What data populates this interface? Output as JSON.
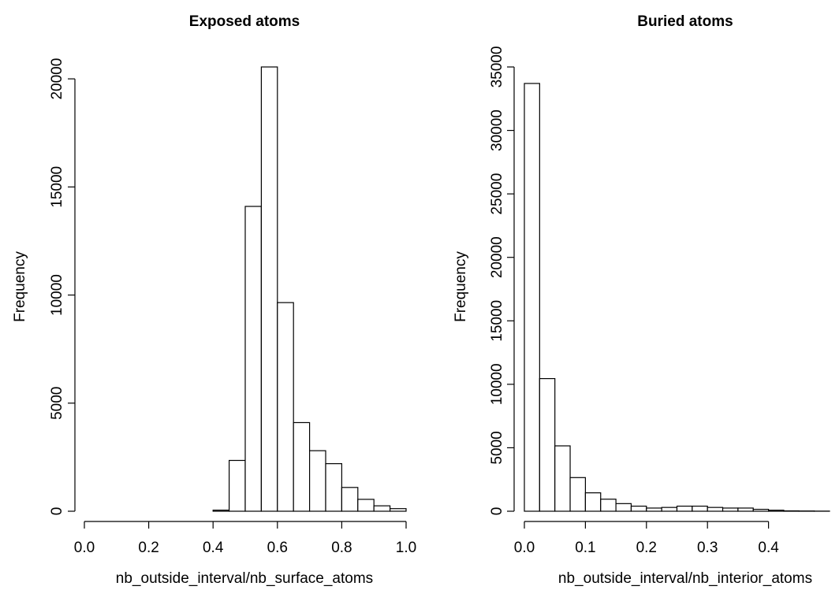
{
  "chart_data": [
    {
      "type": "bar",
      "title": "Exposed atoms",
      "xlabel": "nb_outside_interval/nb_surface_atoms",
      "ylabel": "Frequency",
      "bin_edges": [
        0.0,
        0.05,
        0.1,
        0.15,
        0.2,
        0.25,
        0.3,
        0.35,
        0.4,
        0.45,
        0.5,
        0.55,
        0.6,
        0.65,
        0.7,
        0.75,
        0.8,
        0.85,
        0.9,
        0.95,
        1.0
      ],
      "values": [
        0,
        0,
        0,
        0,
        0,
        0,
        0,
        0,
        50,
        2350,
        14100,
        20550,
        9650,
        4100,
        2800,
        2200,
        1100,
        550,
        250,
        120
      ],
      "xlim": [
        0.0,
        1.0
      ],
      "ylim": [
        0,
        20550
      ],
      "xticks": [
        0.0,
        0.2,
        0.4,
        0.6,
        0.8,
        1.0
      ],
      "xtick_labels": [
        "0.0",
        "0.2",
        "0.4",
        "0.6",
        "0.8",
        "1.0"
      ],
      "yticks": [
        0,
        5000,
        10000,
        15000,
        20000
      ],
      "ytick_labels": [
        "0",
        "5000",
        "10000",
        "15000",
        "20000"
      ],
      "grid": false
    },
    {
      "type": "bar",
      "title": "Buried atoms",
      "xlabel": "nb_outside_interval/nb_interior_atoms",
      "ylabel": "Frequency",
      "bin_edges": [
        0.0,
        0.025,
        0.05,
        0.075,
        0.1,
        0.125,
        0.15,
        0.175,
        0.2,
        0.225,
        0.25,
        0.275,
        0.3,
        0.325,
        0.35,
        0.375,
        0.4,
        0.425,
        0.45,
        0.475,
        0.5
      ],
      "values": [
        33700,
        10450,
        5150,
        2650,
        1450,
        950,
        600,
        400,
        250,
        300,
        400,
        400,
        300,
        250,
        250,
        150,
        80,
        30,
        20,
        10
      ],
      "xlim": [
        0.0,
        0.5
      ],
      "ylim": [
        0,
        35000
      ],
      "xticks": [
        0.0,
        0.1,
        0.2,
        0.3,
        0.4
      ],
      "xtick_labels": [
        "0.0",
        "0.1",
        "0.2",
        "0.3",
        "0.4"
      ],
      "yticks": [
        0,
        5000,
        10000,
        15000,
        20000,
        25000,
        30000,
        35000
      ],
      "ytick_labels": [
        "0",
        "5000",
        "10000",
        "15000",
        "20000",
        "25000",
        "30000",
        "35000"
      ],
      "grid": false
    }
  ]
}
